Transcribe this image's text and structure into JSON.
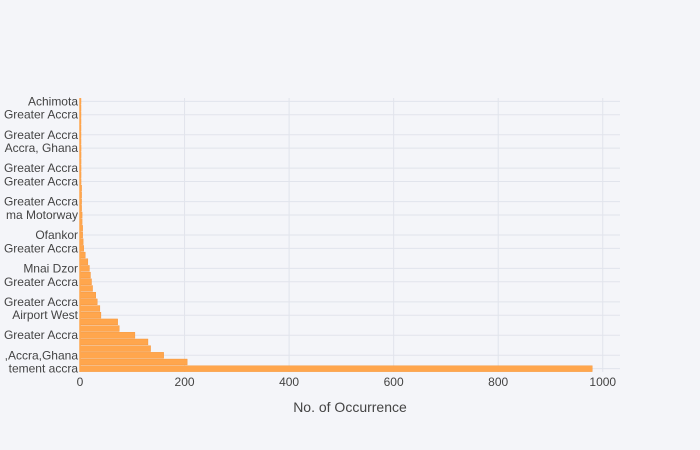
{
  "chart_data": {
    "type": "bar",
    "orientation": "horizontal",
    "title": "",
    "xlabel": "No. of Occurrence",
    "ylabel": "",
    "xlim": [
      0,
      1033
    ],
    "x_ticks": [
      0,
      200,
      400,
      600,
      800,
      1000
    ],
    "grid": true,
    "bar_color": "#ffa64d",
    "labeled_rows": [
      {
        "row": 0,
        "text": "tement accra"
      },
      {
        "row": 2,
        "text": ",Accra,Ghana"
      },
      {
        "row": 5,
        "text": "Greater Accra"
      },
      {
        "row": 8,
        "text": "Airport West"
      },
      {
        "row": 10,
        "text": "Greater Accra"
      },
      {
        "row": 13,
        "text": "Greater Accra"
      },
      {
        "row": 15,
        "text": "Mnai Dzor"
      },
      {
        "row": 18,
        "text": "Greater Accra"
      },
      {
        "row": 20,
        "text": "Ofankor"
      },
      {
        "row": 23,
        "text": "ma Motorway"
      },
      {
        "row": 25,
        "text": "Greater Accra"
      },
      {
        "row": 28,
        "text": "Greater Accra"
      },
      {
        "row": 30,
        "text": "Greater Accra"
      },
      {
        "row": 33,
        "text": "Accra, Ghana"
      },
      {
        "row": 35,
        "text": "Greater Accra"
      },
      {
        "row": 38,
        "text": "Greater Accra"
      },
      {
        "row": 40,
        "text": "Achimota"
      }
    ],
    "values": [
      980,
      205,
      160,
      135,
      130,
      105,
      75,
      72,
      40,
      38,
      33,
      30,
      24,
      22,
      20,
      18,
      15,
      10,
      7,
      6,
      5,
      5,
      4,
      4,
      3,
      3,
      3,
      3,
      2,
      2,
      2,
      2,
      2,
      2,
      1,
      1,
      1,
      1,
      1,
      1,
      1
    ]
  }
}
